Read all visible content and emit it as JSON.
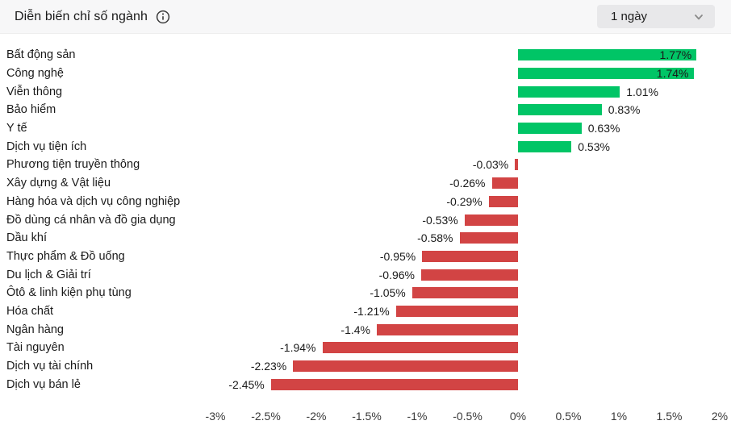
{
  "header": {
    "title": "Diễn biến chỉ số ngành",
    "period_selector": {
      "value": "1 ngày"
    }
  },
  "chart_data": {
    "type": "bar",
    "orientation": "horizontal",
    "title": "Diễn biến chỉ số ngành",
    "xlabel": "",
    "ylabel": "",
    "grid": false,
    "categories": [
      "Bất động sản",
      "Công nghệ",
      "Viễn thông",
      "Bảo hiểm",
      "Y tế",
      "Dịch vụ tiện ích",
      "Phương tiện truyền thông",
      "Xây dựng & Vật liệu",
      "Hàng hóa và dịch vụ công nghiệp",
      "Đồ dùng cá nhân và đồ gia dụng",
      "Dầu khí",
      "Thực phẩm & Đồ uống",
      "Du lịch & Giải trí",
      "Ôtô & linh kiện phụ tùng",
      "Hóa chất",
      "Ngân hàng",
      "Tài nguyên",
      "Dịch vụ tài chính",
      "Dịch vụ bán lẻ"
    ],
    "values": [
      1.77,
      1.74,
      1.01,
      0.83,
      0.63,
      0.53,
      -0.03,
      -0.26,
      -0.29,
      -0.53,
      -0.58,
      -0.95,
      -0.96,
      -1.05,
      -1.21,
      -1.4,
      -1.94,
      -2.23,
      -2.45
    ],
    "value_labels": [
      "1.77%",
      "1.74%",
      "1.01%",
      "0.83%",
      "0.63%",
      "0.53%",
      "-0.03%",
      "-0.26%",
      "-0.29%",
      "-0.53%",
      "-0.58%",
      "-0.95%",
      "-0.96%",
      "-1.05%",
      "-1.21%",
      "-1.4%",
      "-1.94%",
      "-2.23%",
      "-2.45%"
    ],
    "x_axis": {
      "range": [
        -3,
        2
      ],
      "tick_values": [
        -3,
        -2.5,
        -2,
        -1.5,
        -1,
        -0.5,
        0,
        0.5,
        1,
        1.5,
        2
      ],
      "tick_labels": [
        "-3%",
        "-2.5%",
        "-2%",
        "-1.5%",
        "-1%",
        "-0.5%",
        "0%",
        "0.5%",
        "1%",
        "1.5%",
        "2%"
      ]
    },
    "colors": {
      "positive": "#00c566",
      "negative": "#d24444",
      "value_text": "#1a1a1a",
      "axis_text": "#3a3a3a"
    }
  }
}
